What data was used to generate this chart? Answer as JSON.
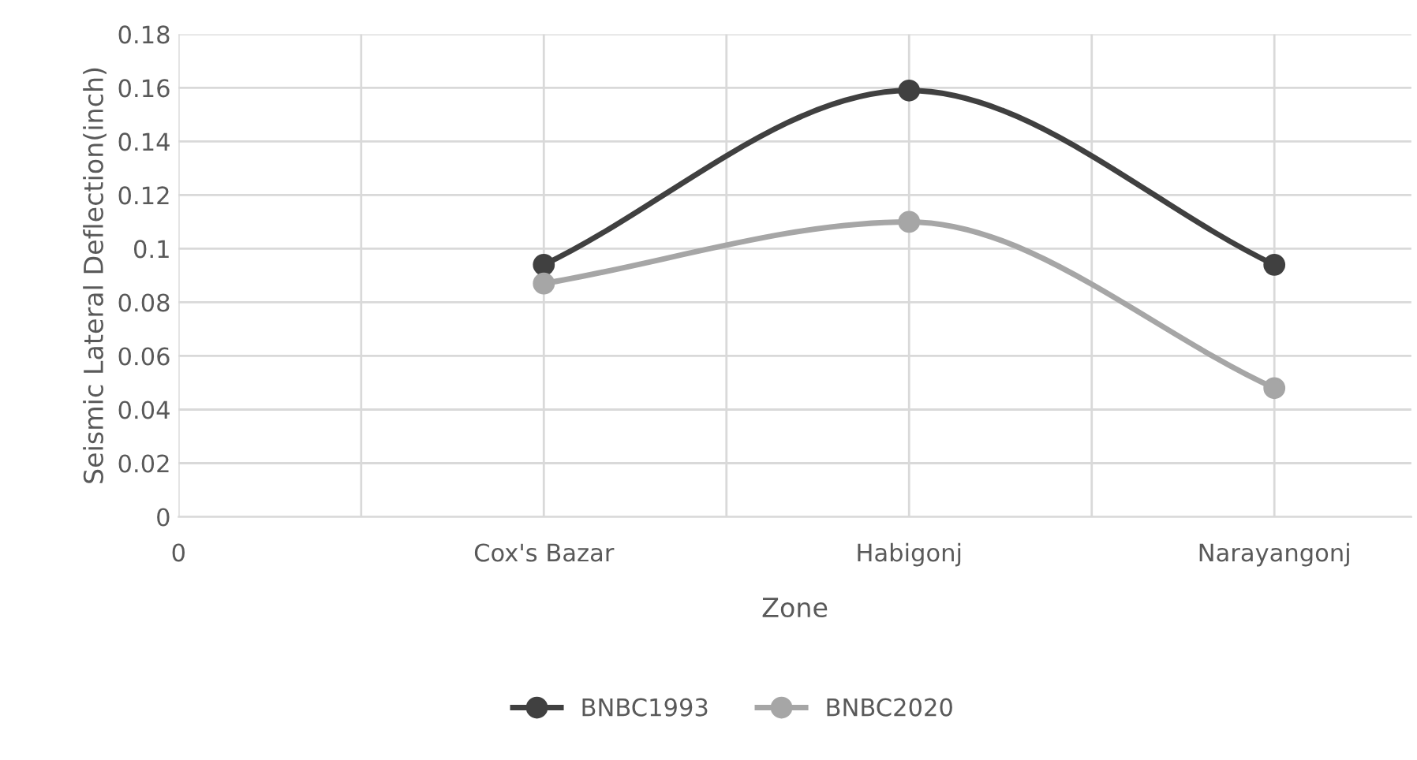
{
  "chart_data": {
    "type": "line",
    "xlabel": "Zone",
    "ylabel": "Seismic Lateral Deflection(inch)",
    "categories": [
      "0",
      null,
      "Cox's Bazar",
      null,
      "Habigonj",
      null,
      "Narayangonj"
    ],
    "series": [
      {
        "name": "BNBC1993",
        "color": "#404040",
        "values": [
          null,
          null,
          0.094,
          null,
          0.159,
          null,
          0.094
        ]
      },
      {
        "name": "BNBC2020",
        "color": "#a6a6a6",
        "values": [
          null,
          null,
          0.087,
          null,
          0.11,
          null,
          0.048
        ]
      }
    ],
    "ylim": [
      0,
      0.18
    ],
    "yticks": [
      0,
      0.02,
      0.04,
      0.06,
      0.08,
      0.1,
      0.12,
      0.14,
      0.16,
      0.18
    ],
    "grid": true,
    "legend": "bottom",
    "marker": "circle",
    "line_style": "solid"
  }
}
